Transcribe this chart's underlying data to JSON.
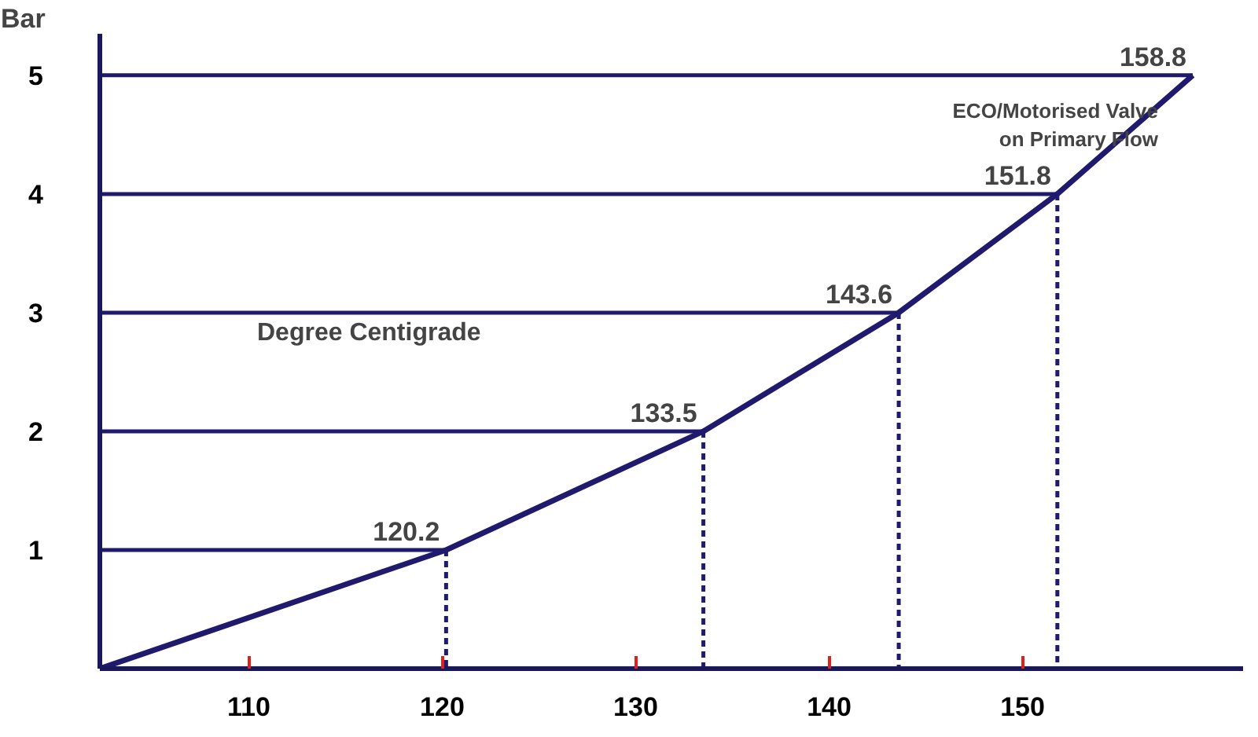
{
  "chart_data": {
    "type": "line",
    "ylabel": "Bar",
    "xlabel": "Degree Centigrade",
    "series": [
      {
        "color": "#1f1a6e",
        "x": [
          102.3,
          120.2,
          133.5,
          143.6,
          151.8,
          158.8
        ],
        "values": [
          0,
          1,
          2,
          3,
          4,
          5
        ]
      },
      {
        "color": "#1f1a6e",
        "x": [
          102.3,
          120.2
        ],
        "values": [
          1,
          1
        ]
      },
      {
        "color": "#1f1a6e",
        "x": [
          102.3,
          133.5
        ],
        "values": [
          2,
          2
        ]
      },
      {
        "color": "#1f1a6e",
        "x": [
          102.3,
          143.6
        ],
        "values": [
          3,
          3
        ]
      },
      {
        "color": "#1f1a6e",
        "x": [
          102.3,
          151.8
        ],
        "values": [
          4,
          4
        ]
      },
      {
        "color": "#1f1a6e",
        "x": [
          102.3,
          158.8
        ],
        "values": [
          5,
          5
        ]
      },
      {
        "color": "#1f1a6e",
        "x": [
          120.2,
          120.2
        ],
        "values": [
          1,
          0
        ],
        "line_style": "dashed"
      },
      {
        "color": "#1f1a6e",
        "x": [
          133.5,
          133.5
        ],
        "values": [
          2,
          0
        ],
        "line_style": "dashed"
      },
      {
        "color": "#1f1a6e",
        "x": [
          143.6,
          143.6
        ],
        "values": [
          3,
          0
        ],
        "line_style": "dashed"
      },
      {
        "color": "#1f1a6e",
        "x": [
          151.8,
          151.8
        ],
        "values": [
          4,
          0
        ],
        "line_style": "dashed"
      }
    ],
    "xlim": [
      102.3,
      161.4
    ],
    "ylim": [
      0,
      5.35
    ],
    "xticks": [
      110,
      120,
      130,
      140,
      150
    ],
    "yticks": [
      1,
      2,
      3,
      4,
      5
    ],
    "annotations": [
      {
        "text": "120.2",
        "x": 120.2,
        "y": 1
      },
      {
        "text": "133.5",
        "x": 133.5,
        "y": 2
      },
      {
        "text": "143.6",
        "x": 143.6,
        "y": 3
      },
      {
        "text": "151.8",
        "x": 151.8,
        "y": 4
      },
      {
        "text": "158.8",
        "x": 158.8,
        "y": 5
      },
      {
        "text": "ECO/Motorised Valve\non Primary Flow",
        "x": 158.8,
        "y": 5
      }
    ],
    "grid": false,
    "line_style": "solid"
  }
}
